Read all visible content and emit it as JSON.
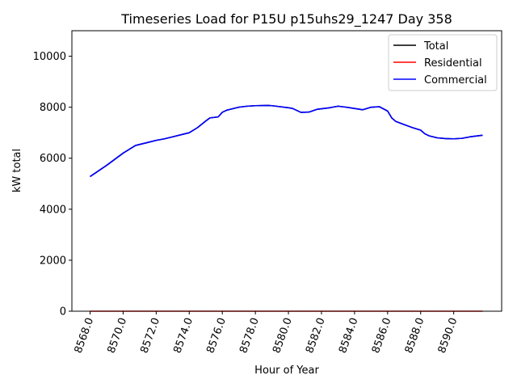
{
  "chart_data": {
    "type": "line",
    "title": "Timeseries Load for P15U p15uhs29_1247  Day 358",
    "xlabel": "Hour of Year",
    "ylabel": "kW total",
    "xlim": [
      8566.9,
      8592.9
    ],
    "ylim": [
      0,
      11000
    ],
    "x_ticks": [
      8568,
      8570,
      8572,
      8574,
      8576,
      8578,
      8580,
      8582,
      8584,
      8586,
      8588,
      8590
    ],
    "x_tick_labels": [
      "8568.0",
      "8570.0",
      "8572.0",
      "8574.0",
      "8576.0",
      "8578.0",
      "8580.0",
      "8582.0",
      "8584.0",
      "8586.0",
      "8588.0",
      "8590.0"
    ],
    "y_ticks": [
      0,
      2000,
      4000,
      6000,
      8000,
      10000
    ],
    "y_tick_labels": [
      "0",
      "2000",
      "4000",
      "6000",
      "8000",
      "10000"
    ],
    "grid": false,
    "legend_position": "top-right",
    "x": [
      8568.0,
      8569.0,
      8570.0,
      8570.75,
      8571.5,
      8572.0,
      8572.5,
      8573.0,
      8573.75,
      8574.0,
      8574.5,
      8575.0,
      8575.25,
      8575.75,
      8576.0,
      8576.25,
      8576.5,
      8577.0,
      8577.5,
      8578.0,
      8578.75,
      8579.0,
      8579.5,
      8580.0,
      8580.25,
      8580.75,
      8581.25,
      8581.75,
      8582.0,
      8582.5,
      8583.0,
      8583.5,
      8584.0,
      8584.5,
      8585.0,
      8585.5,
      8586.0,
      8586.25,
      8586.5,
      8587.0,
      8587.5,
      8588.0,
      8588.25,
      8588.5,
      8589.0,
      8589.5,
      8590.0,
      8590.5,
      8591.0,
      8591.75
    ],
    "series": [
      {
        "name": "Total",
        "color": "#000000",
        "values": [
          5280,
          5720,
          6200,
          6500,
          6620,
          6700,
          6760,
          6840,
          6960,
          7000,
          7200,
          7460,
          7580,
          7620,
          7800,
          7880,
          7920,
          8000,
          8040,
          8060,
          8070,
          8060,
          8020,
          7980,
          7950,
          7800,
          7810,
          7920,
          7940,
          7980,
          8040,
          8000,
          7950,
          7900,
          8000,
          8020,
          7850,
          7580,
          7440,
          7320,
          7200,
          7100,
          6960,
          6880,
          6800,
          6770,
          6760,
          6780,
          6840,
          6900
        ]
      },
      {
        "name": "Residential",
        "color": "#ff0000",
        "values": [
          0,
          0,
          0,
          0,
          0,
          0,
          0,
          0,
          0,
          0,
          0,
          0,
          0,
          0,
          0,
          0,
          0,
          0,
          0,
          0,
          0,
          0,
          0,
          0,
          0,
          0,
          0,
          0,
          0,
          0,
          0,
          0,
          0,
          0,
          0,
          0,
          0,
          0,
          0,
          0,
          0,
          0,
          0,
          0,
          0,
          0,
          0,
          0,
          0,
          0
        ]
      },
      {
        "name": "Commercial",
        "color": "#0000ff",
        "values": [
          5280,
          5720,
          6200,
          6500,
          6620,
          6700,
          6760,
          6840,
          6960,
          7000,
          7200,
          7460,
          7580,
          7620,
          7800,
          7880,
          7920,
          8000,
          8040,
          8060,
          8070,
          8060,
          8020,
          7980,
          7950,
          7800,
          7810,
          7920,
          7940,
          7980,
          8040,
          8000,
          7950,
          7900,
          8000,
          8020,
          7850,
          7580,
          7440,
          7320,
          7200,
          7100,
          6960,
          6880,
          6800,
          6770,
          6760,
          6780,
          6840,
          6900
        ]
      }
    ]
  }
}
